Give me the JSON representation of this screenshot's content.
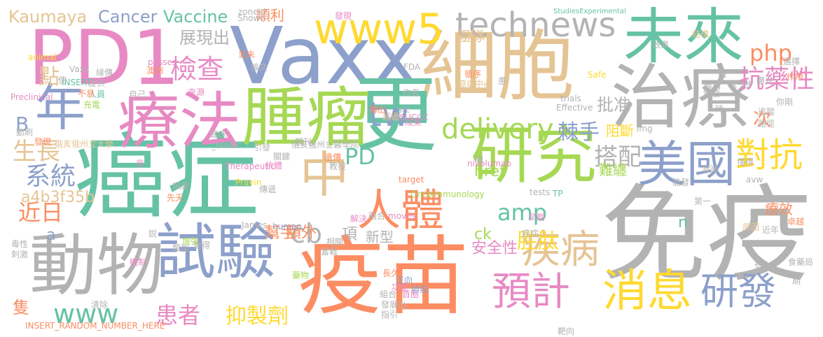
{
  "palette": {
    "green": "#66c2a5",
    "orange": "#fc8d62",
    "blue": "#8da0cb",
    "pink": "#e78ac3",
    "lime": "#a6d854",
    "yellow": "#ffd92f",
    "tan": "#e5c494",
    "gray": "#b3b3b3"
  },
  "words": [
    {
      "text": "免疫",
      "color": "gray"
    },
    {
      "text": "癌症",
      "color": "green"
    },
    {
      "text": "疫苗",
      "color": "orange"
    },
    {
      "text": "細胞",
      "color": "tan"
    },
    {
      "text": "Vaxx",
      "color": "blue"
    },
    {
      "text": "PD1",
      "color": "pink"
    },
    {
      "text": "治療",
      "color": "gray"
    },
    {
      "text": "更",
      "color": "green"
    },
    {
      "text": "研究",
      "color": "lime"
    },
    {
      "text": "腫瘤",
      "color": "lime"
    },
    {
      "text": "動物",
      "color": "gray"
    },
    {
      "text": "試驗",
      "color": "blue"
    },
    {
      "text": "療法",
      "color": "pink"
    },
    {
      "text": "未來",
      "color": "green"
    },
    {
      "text": "中",
      "color": "tan"
    },
    {
      "text": "年",
      "color": "blue"
    },
    {
      "text": "美國",
      "color": "blue"
    },
    {
      "text": "www5",
      "color": "yellow"
    },
    {
      "text": "technews",
      "color": "gray"
    },
    {
      "text": "人體",
      "color": "orange"
    },
    {
      "text": "消息",
      "color": "yellow"
    },
    {
      "text": "疾病",
      "color": "tan"
    },
    {
      "text": "研發",
      "color": "blue"
    },
    {
      "text": "預計",
      "color": "pink"
    },
    {
      "text": "對抗",
      "color": "yellow"
    },
    {
      "text": "www",
      "color": "green"
    },
    {
      "text": "delivery",
      "color": "lime"
    },
    {
      "text": "抗藥性",
      "color": "pink"
    },
    {
      "text": "tw",
      "color": "blue"
    },
    {
      "text": "系統",
      "color": "blue"
    },
    {
      "text": "檢查",
      "color": "pink"
    },
    {
      "text": "php",
      "color": "orange"
    },
    {
      "text": "amp",
      "color": "green"
    },
    {
      "text": "cb",
      "color": "gray"
    },
    {
      "text": "近日",
      "color": "orange"
    },
    {
      "text": "PD",
      "color": "green"
    },
    {
      "text": "搭配",
      "color": "gray"
    },
    {
      "text": "患者",
      "color": "pink"
    },
    {
      "text": "抑製劑",
      "color": "yellow"
    },
    {
      "text": "棘手",
      "color": "blue"
    },
    {
      "text": "胜肽",
      "color": "yellow"
    },
    {
      "text": "生長",
      "color": "tan"
    },
    {
      "text": "點",
      "color": "tan"
    },
    {
      "text": "Cancer",
      "color": "blue"
    },
    {
      "text": "Vaccine",
      "color": "green"
    },
    {
      "text": "Kaumaya",
      "color": "tan"
    },
    {
      "text": "展現出",
      "color": "gray"
    },
    {
      "text": "批准",
      "color": "gray"
    },
    {
      "text": "阻斷",
      "color": "yellow"
    },
    {
      "text": "次",
      "color": "orange"
    },
    {
      "text": "a4b3f35b",
      "color": "tan"
    },
    {
      "text": "B",
      "color": "blue"
    },
    {
      "text": "隻",
      "color": "orange"
    },
    {
      "text": "幫手",
      "color": "orange"
    },
    {
      "text": "額外",
      "color": "orange"
    },
    {
      "text": "項",
      "color": "gray"
    },
    {
      "text": "新型",
      "color": "gray"
    },
    {
      "text": "安全性",
      "color": "pink"
    },
    {
      "text": "ck",
      "color": "lime"
    },
    {
      "text": "href",
      "color": "lime"
    },
    {
      "text": "順利",
      "color": "orange"
    },
    {
      "text": "團隊",
      "color": "tan"
    },
    {
      "text": "a",
      "color": "blue"
    },
    {
      "text": "n",
      "color": "green"
    },
    {
      "text": "療效",
      "color": "orange"
    },
    {
      "text": "難纏",
      "color": "lime"
    },
    {
      "text": "Therapeutic",
      "color": "pink"
    },
    {
      "text": "nivolumab",
      "color": "pink"
    },
    {
      "text": "Oncoimmunology",
      "color": "lime"
    },
    {
      "text": "INSERT_RANDOM_NUMBER_HERE'",
      "color": "orange"
    },
    {
      "text": "zoneid",
      "color": "gray"
    },
    {
      "text": "Shown",
      "color": "gray"
    },
    {
      "text": "StudiesExperimental",
      "color": "green"
    },
    {
      "text": "FDA",
      "color": "gray"
    },
    {
      "text": "OSUCCC",
      "color": "pink"
    },
    {
      "text": "Preclinical",
      "color": "pink"
    },
    {
      "text": "INSERT",
      "color": "green"
    },
    {
      "text": "_blank'",
      "color": "gray"
    },
    {
      "text": "Pravin",
      "color": "yellow"
    },
    {
      "text": "human",
      "color": "blue"
    },
    {
      "text": "James",
      "color": "gray"
    },
    {
      "text": "moves",
      "color": "pink"
    },
    {
      "text": "target",
      "color": "orange"
    },
    {
      "text": "trials",
      "color": "gray"
    },
    {
      "text": "Effective",
      "color": "gray"
    },
    {
      "text": "tests",
      "color": "gray"
    },
    {
      "text": "img",
      "color": "gray"
    },
    {
      "text": "TP",
      "color": "green"
    },
    {
      "text": "avw",
      "color": "gray"
    },
    {
      "text": "Safe",
      "color": "yellow"
    },
    {
      "text": "passes",
      "color": "pink"
    },
    {
      "text": "animal",
      "color": "yellow"
    },
    {
      "text": "Vaxx",
      "color": "gray"
    },
    {
      "text": "src",
      "color": "gray"
    },
    {
      "text": "發現",
      "color": "pink"
    },
    {
      "text": "俄亥俄州立大學",
      "color": "tan"
    },
    {
      "text": "俄亥俄州立醫學院",
      "color": "gray"
    },
    {
      "text": "抗體",
      "color": "pink"
    },
    {
      "text": "卓越",
      "color": "orange"
    },
    {
      "text": "作用",
      "color": "orange"
    },
    {
      "text": "選擇",
      "color": "gray"
    },
    {
      "text": "食藥局",
      "color": "gray"
    },
    {
      "text": "期",
      "color": "gray"
    },
    {
      "text": "近年",
      "color": "gray"
    },
    {
      "text": "原因",
      "color": "tan"
    },
    {
      "text": "第一",
      "color": "gray"
    },
    {
      "text": "傳遞",
      "color": "gray"
    },
    {
      "text": "訊息",
      "color": "gray"
    },
    {
      "text": "先天",
      "color": "orange"
    },
    {
      "text": "毒性",
      "color": "gray"
    },
    {
      "text": "刺激",
      "color": "gray"
    },
    {
      "text": "長久",
      "color": "orange"
    },
    {
      "text": "相關",
      "color": "gray"
    },
    {
      "text": "當戰",
      "color": "gray"
    },
    {
      "text": "功能",
      "color": "pink"
    },
    {
      "text": "首圈",
      "color": "pink"
    },
    {
      "text": "藥物",
      "color": "lime"
    },
    {
      "text": "正向",
      "color": "blue"
    },
    {
      "text": "肺癌",
      "color": "blue"
    },
    {
      "text": "組合",
      "color": "gray"
    },
    {
      "text": "發展出",
      "color": "gray"
    },
    {
      "text": "指引",
      "color": "gray"
    },
    {
      "text": "清除",
      "color": "gray"
    },
    {
      "text": "靶向",
      "color": "gray"
    },
    {
      "text": "初",
      "color": "gray"
    },
    {
      "text": "早期",
      "color": "pink"
    },
    {
      "text": "懂得",
      "color": "gray"
    },
    {
      "text": "路徑",
      "color": "gray"
    },
    {
      "text": "追蹤",
      "color": "gray"
    },
    {
      "text": "你剛",
      "color": "gray"
    },
    {
      "text": "曝光",
      "color": "gray"
    },
    {
      "text": "進一步",
      "color": "gray"
    },
    {
      "text": "實驗",
      "color": "gray"
    },
    {
      "text": "時",
      "color": "gray"
    },
    {
      "text": "癌",
      "color": "gray"
    },
    {
      "text": "效果",
      "color": "gray"
    },
    {
      "text": "結構",
      "color": "tan"
    },
    {
      "text": "機制",
      "color": "pink"
    },
    {
      "text": "類型",
      "color": "gray"
    },
    {
      "text": "增強",
      "color": "lime"
    },
    {
      "text": "變得",
      "color": "gray"
    },
    {
      "text": "解構",
      "color": "gray"
    },
    {
      "text": "說",
      "color": "gray"
    },
    {
      "text": "提供",
      "color": "gray"
    },
    {
      "text": "人員",
      "color": "green"
    },
    {
      "text": "不易",
      "color": "orange"
    },
    {
      "text": "充電",
      "color": "lime"
    },
    {
      "text": "自己",
      "color": "gray"
    },
    {
      "text": "來源",
      "color": "pink"
    },
    {
      "text": "臨床",
      "color": "gray"
    },
    {
      "text": "澳洲",
      "color": "orange"
    },
    {
      "text": "並未",
      "color": "orange"
    },
    {
      "text": "論文",
      "color": "gray"
    },
    {
      "text": "使",
      "color": "gray"
    },
    {
      "text": "緣傳",
      "color": "gray"
    },
    {
      "text": "關鍵",
      "color": "gray"
    },
    {
      "text": "遺傳",
      "color": "orange"
    },
    {
      "text": "教授",
      "color": "gray"
    },
    {
      "text": "傳出",
      "color": "orange"
    },
    {
      "text": "超過",
      "color": "tan"
    },
    {
      "text": "成果",
      "color": "pink"
    },
    {
      "text": "作者",
      "color": "gray"
    },
    {
      "text": "循序",
      "color": "orange"
    },
    {
      "text": "癌症中心",
      "color": "tan"
    },
    {
      "text": "患",
      "color": "gray"
    },
    {
      "text": "能發",
      "color": "gray"
    },
    {
      "text": "消滅",
      "color": "gray"
    },
    {
      "text": "融合",
      "color": "gray"
    },
    {
      "text": "解決",
      "color": "pink"
    },
    {
      "text": "動刷",
      "color": "gray"
    },
    {
      "text": "發現",
      "color": "orange"
    },
    {
      "text": "非",
      "color": "pink"
    },
    {
      "text": "期刊",
      "color": "gray"
    },
    {
      "text": "引發",
      "color": "gray"
    },
    {
      "text": "體",
      "color": "gray"
    },
    {
      "text": "癌症",
      "color": "gray"
    },
    {
      "text": "T",
      "color": "gray"
    },
    {
      "text": "隨著",
      "color": "orange"
    }
  ]
}
